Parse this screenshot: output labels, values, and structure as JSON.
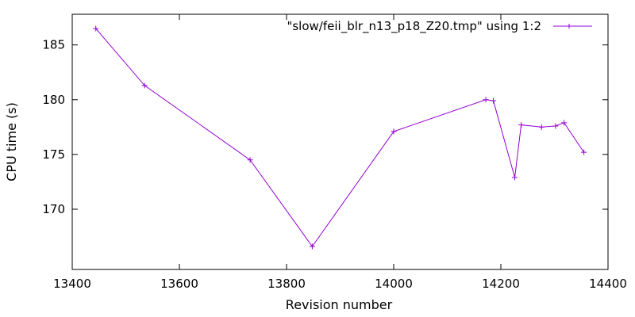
{
  "chart_data": {
    "type": "line",
    "xlabel": "Revision number",
    "ylabel": "CPU time (s)",
    "xlim": [
      13400,
      14400
    ],
    "ylim": [
      164.5,
      187.8
    ],
    "x_ticks": [
      13400,
      13600,
      13800,
      14000,
      14200,
      14400
    ],
    "y_ticks": [
      170,
      175,
      180,
      185
    ],
    "grid": false,
    "legend_position": "top-right",
    "series": [
      {
        "name": "\"slow/feii_blr_n13_p18_Z20.tmp\" using 1:2",
        "color": "#9400d3",
        "marker": "plus",
        "x": [
          13444,
          13535,
          13732,
          13848,
          14000,
          14172,
          14186,
          14226,
          14238,
          14276,
          14302,
          14318,
          14355
        ],
        "y": [
          186.5,
          181.3,
          174.5,
          166.6,
          177.1,
          180.0,
          179.9,
          172.9,
          177.7,
          177.5,
          177.6,
          177.9,
          175.2
        ]
      }
    ]
  }
}
